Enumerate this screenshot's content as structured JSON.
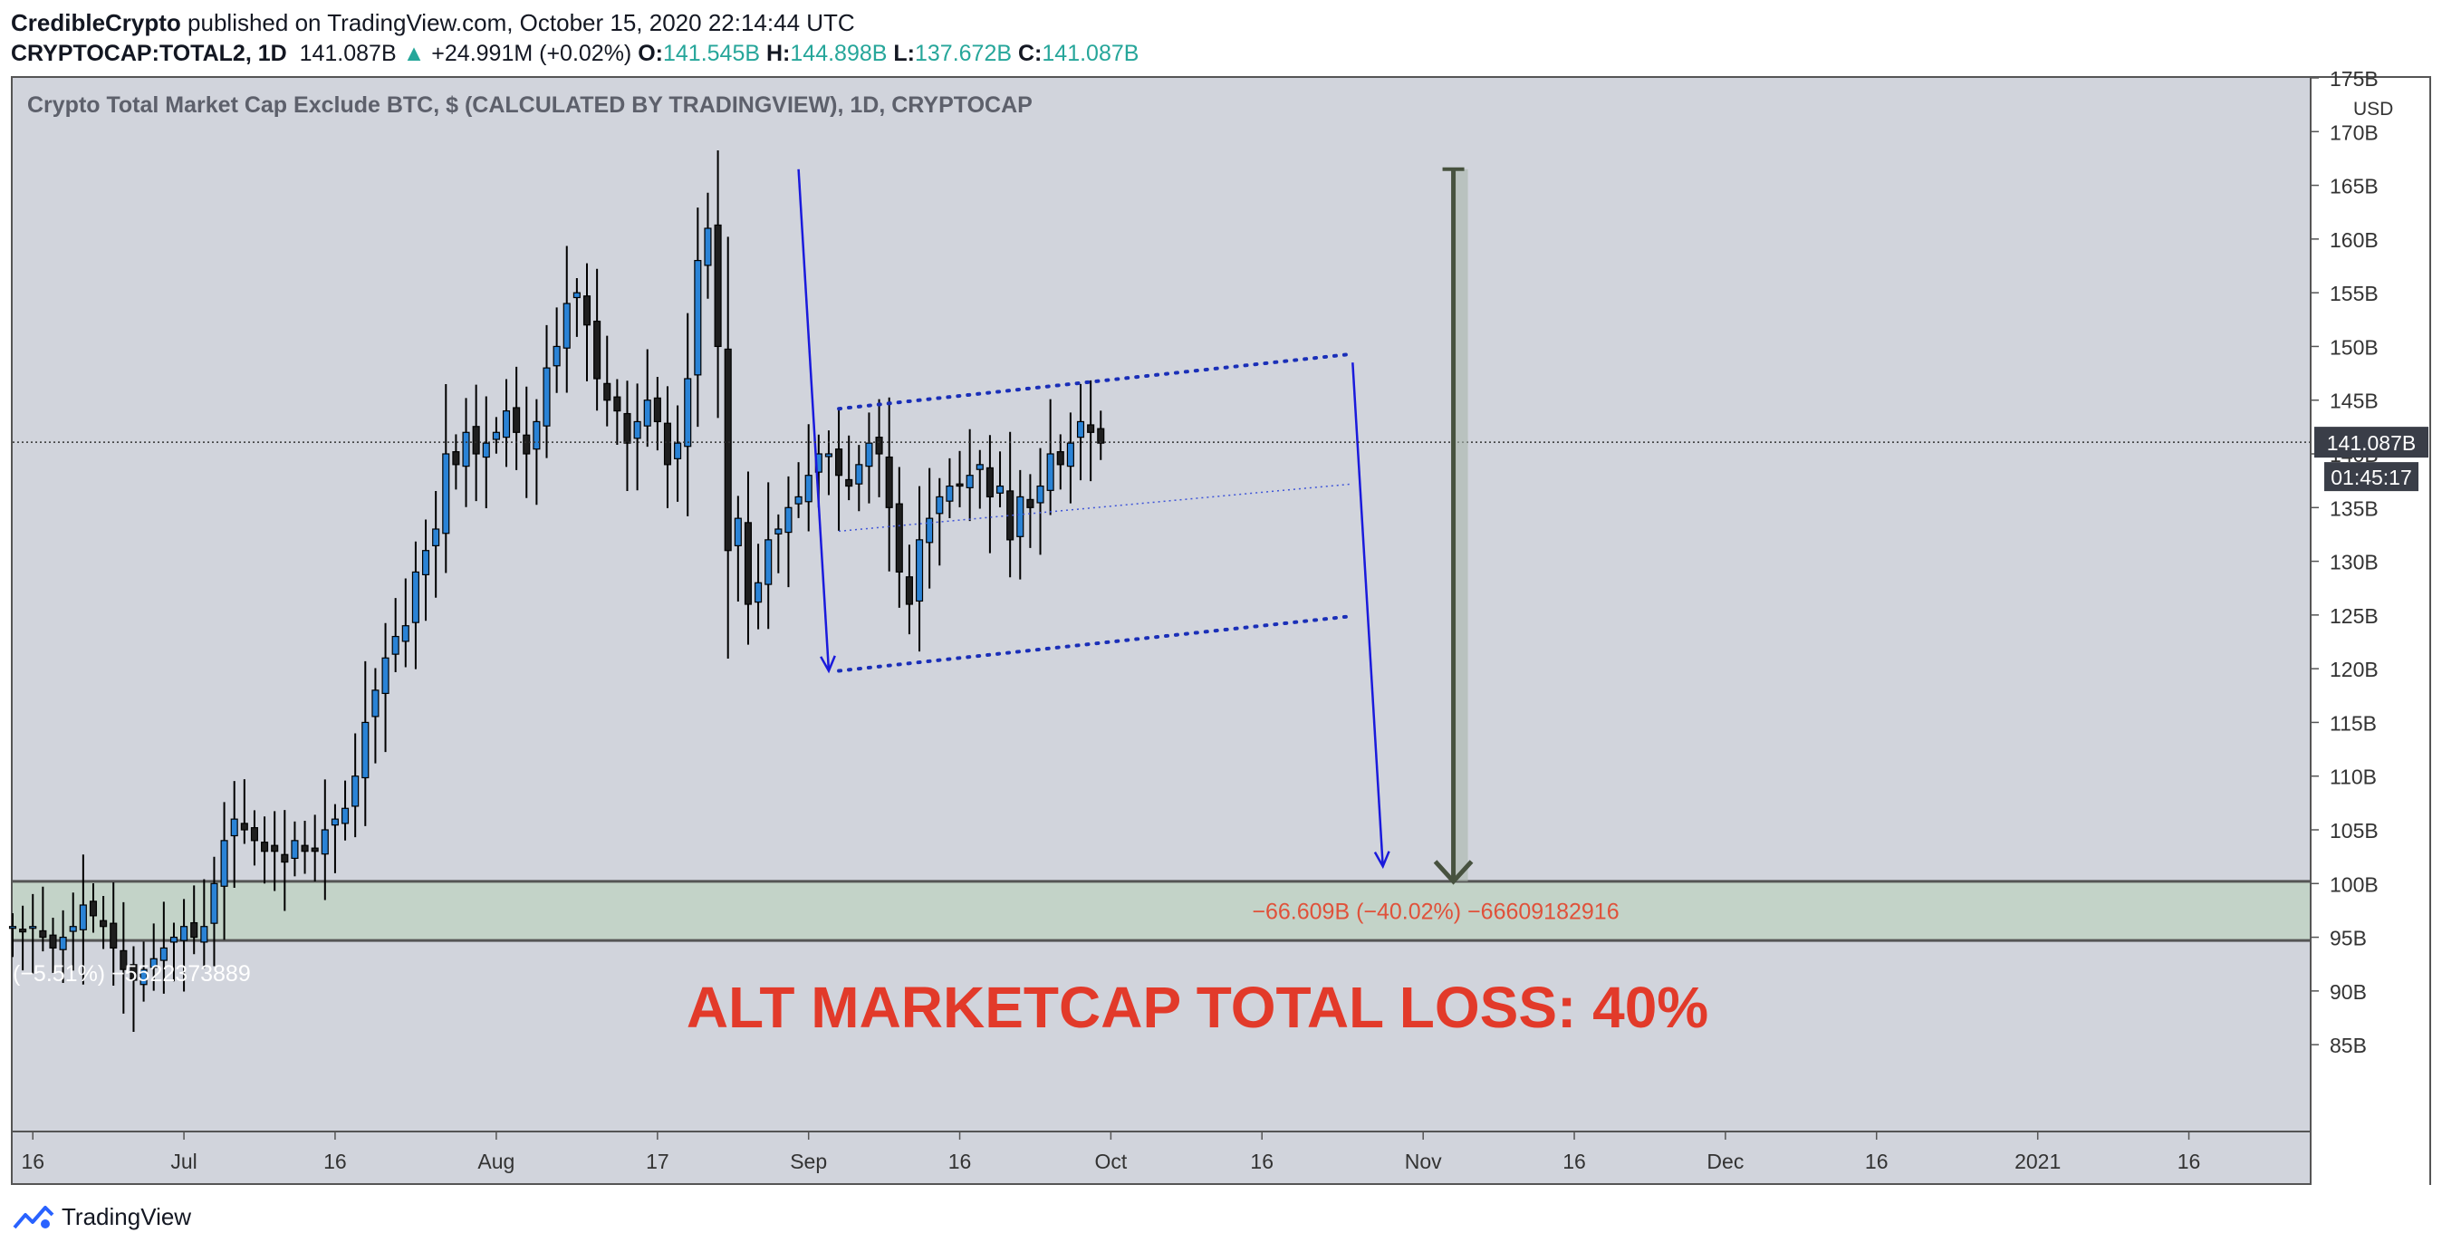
{
  "header": {
    "author": "CredibleCrypto",
    "published": " published on TradingView.com, October 15, 2020 22:14:44 UTC",
    "symbol": "CRYPTOCAP:TOTAL2, 1D",
    "last": "141.087B",
    "change": "+24.991M (+0.02%)",
    "o_label": "O:",
    "o_value": "141.545B",
    "h_label": "H:",
    "h_value": "144.898B",
    "l_label": "L:",
    "l_value": "137.672B",
    "c_label": "C:",
    "c_value": "141.087B"
  },
  "footer": {
    "brand": "TradingView"
  },
  "chart_data": {
    "type": "candlestick",
    "title": "Crypto Total Market Cap Exclude BTC, $ (CALCULATED BY TRADINGVIEW), 1D, CRYPTOCAP",
    "y_unit": "USD",
    "ylim": [
      77,
      175
    ],
    "y_ticks": [
      {
        "v": 175,
        "label": "175B"
      },
      {
        "v": 170,
        "label": "170B"
      },
      {
        "v": 165,
        "label": "165B"
      },
      {
        "v": 160,
        "label": "160B"
      },
      {
        "v": 155,
        "label": "155B"
      },
      {
        "v": 150,
        "label": "150B"
      },
      {
        "v": 145,
        "label": "145B"
      },
      {
        "v": 140,
        "label": "140B"
      },
      {
        "v": 135,
        "label": "135B"
      },
      {
        "v": 130,
        "label": "130B"
      },
      {
        "v": 125,
        "label": "125B"
      },
      {
        "v": 120,
        "label": "120B"
      },
      {
        "v": 115,
        "label": "115B"
      },
      {
        "v": 110,
        "label": "110B"
      },
      {
        "v": 105,
        "label": "105B"
      },
      {
        "v": 100,
        "label": "100B"
      },
      {
        "v": 95,
        "label": "95B"
      },
      {
        "v": 90,
        "label": "90B"
      },
      {
        "v": 85,
        "label": "85B"
      }
    ],
    "x_start": "2020-06-14",
    "x_end": "2021-01-28",
    "x_ticks": [
      {
        "date": "2020-06-16",
        "label": "16"
      },
      {
        "date": "2020-07-01",
        "label": "Jul"
      },
      {
        "date": "2020-07-16",
        "label": "16"
      },
      {
        "date": "2020-08-01",
        "label": "Aug"
      },
      {
        "date": "2020-08-17",
        "label": "17"
      },
      {
        "date": "2020-09-01",
        "label": "Sep"
      },
      {
        "date": "2020-09-16",
        "label": "16"
      },
      {
        "date": "2020-10-01",
        "label": "Oct"
      },
      {
        "date": "2020-10-16",
        "label": "16"
      },
      {
        "date": "2020-11-01",
        "label": "Nov"
      },
      {
        "date": "2020-11-16",
        "label": "16"
      },
      {
        "date": "2020-12-01",
        "label": "Dec"
      },
      {
        "date": "2020-12-16",
        "label": "16"
      },
      {
        "date": "2021-01-01",
        "label": "2021"
      },
      {
        "date": "2021-01-16",
        "label": "16"
      }
    ],
    "candles_start": "2020-06-14",
    "close": [
      96,
      95.5,
      96,
      95,
      94,
      95,
      96,
      98,
      97,
      96,
      94,
      92,
      91,
      92,
      93,
      94,
      95,
      96,
      95,
      96,
      100,
      104,
      106,
      105,
      104,
      103,
      103,
      102,
      104,
      103,
      103,
      105,
      106,
      107,
      110,
      115,
      118,
      121,
      123,
      124,
      129,
      131,
      133,
      140,
      139,
      142,
      140,
      141,
      142,
      144,
      142,
      140,
      143,
      148,
      150,
      154,
      155,
      152,
      147,
      145,
      144,
      141,
      143,
      145,
      143,
      139,
      141,
      147,
      158,
      161,
      150,
      131,
      134,
      126,
      128,
      132,
      133,
      135,
      136,
      138,
      140,
      140,
      138,
      137,
      139,
      141,
      140,
      135,
      129,
      126,
      132,
      134,
      136,
      137,
      137,
      138,
      139,
      136,
      137,
      132,
      136,
      135,
      137,
      140,
      139,
      141,
      143,
      142,
      141
    ],
    "price_line": 141.087,
    "price_label": "141.087B",
    "countdown": "01:45:17",
    "support_zone": [
      94.7,
      100.2
    ],
    "channel": {
      "upper": [
        {
          "date": "2020-09-04",
          "v": 144.2
        },
        {
          "date": "2020-10-25",
          "v": 149.3
        }
      ],
      "mid": [
        {
          "date": "2020-09-04",
          "v": 132.8
        },
        {
          "date": "2020-10-25",
          "v": 137.2
        }
      ],
      "lower": [
        {
          "date": "2020-09-04",
          "v": 119.8
        },
        {
          "date": "2020-10-25",
          "v": 124.9
        }
      ]
    },
    "drop_arrow_1": [
      {
        "date": "2020-08-31",
        "v": 166.5
      },
      {
        "date": "2020-09-03",
        "v": 119.8
      }
    ],
    "drop_arrow_2": [
      {
        "date": "2020-10-25",
        "v": 148.5
      },
      {
        "date": "2020-10-28",
        "v": 101.6
      }
    ],
    "measure": {
      "date": "2020-11-04",
      "from": 166.5,
      "to": 100.2
    },
    "measure_label": "−66.609B (−40.02%) −66609182916",
    "measure_label_left": "(−5.51%) −5522373889",
    "headline": "ALT MARKETCAP TOTAL LOSS: 40%"
  }
}
